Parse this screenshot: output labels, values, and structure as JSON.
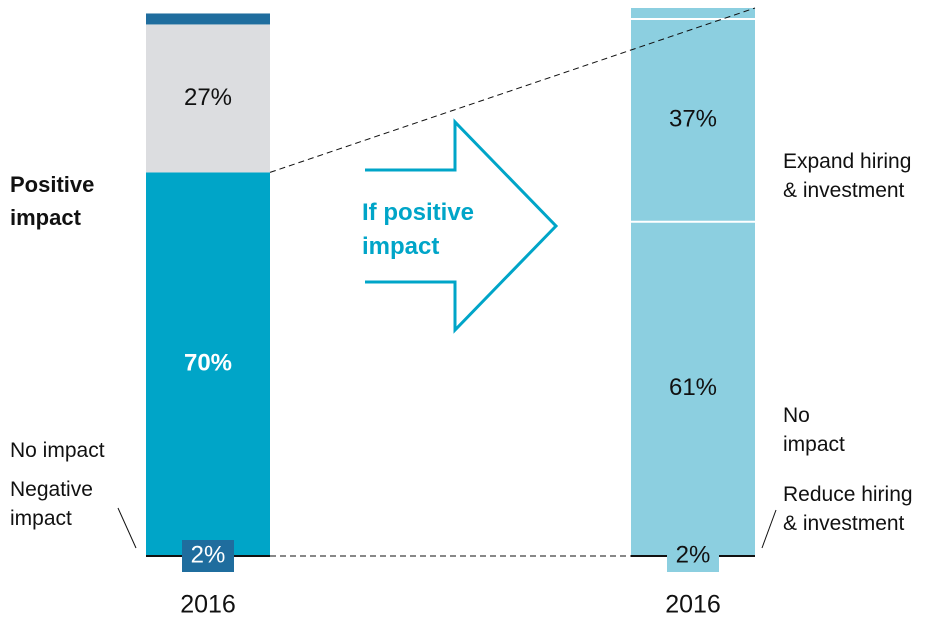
{
  "annotation": "If positive impact",
  "chart_data": [
    {
      "type": "stacked_bar",
      "categories": [
        "2016"
      ],
      "ylim": [
        0,
        100
      ],
      "series": [
        {
          "name": "Positive impact",
          "color": "#00a5c8",
          "values": [
            70
          ],
          "value_labels": [
            "70%"
          ]
        },
        {
          "name": "No impact",
          "color": "#dcdde0",
          "values": [
            27
          ],
          "value_labels": [
            "27%"
          ]
        },
        {
          "name": "Negative impact",
          "color": "#1f6d9e",
          "values": [
            2
          ],
          "value_labels": [
            "2%"
          ]
        }
      ]
    },
    {
      "type": "stacked_bar",
      "categories": [
        "2016"
      ],
      "ylim": [
        0,
        100
      ],
      "series": [
        {
          "name": "Expand hiring & investment",
          "color": "#8ccfe0",
          "values": [
            61
          ],
          "value_labels": [
            "61%"
          ]
        },
        {
          "name": "No impact",
          "color": "#8ccfe0",
          "values": [
            37
          ],
          "value_labels": [
            "37%"
          ]
        },
        {
          "name": "Reduce hiring & investment",
          "color": "#8ccfe0",
          "values": [
            2
          ],
          "value_labels": [
            "2%"
          ]
        }
      ]
    }
  ]
}
